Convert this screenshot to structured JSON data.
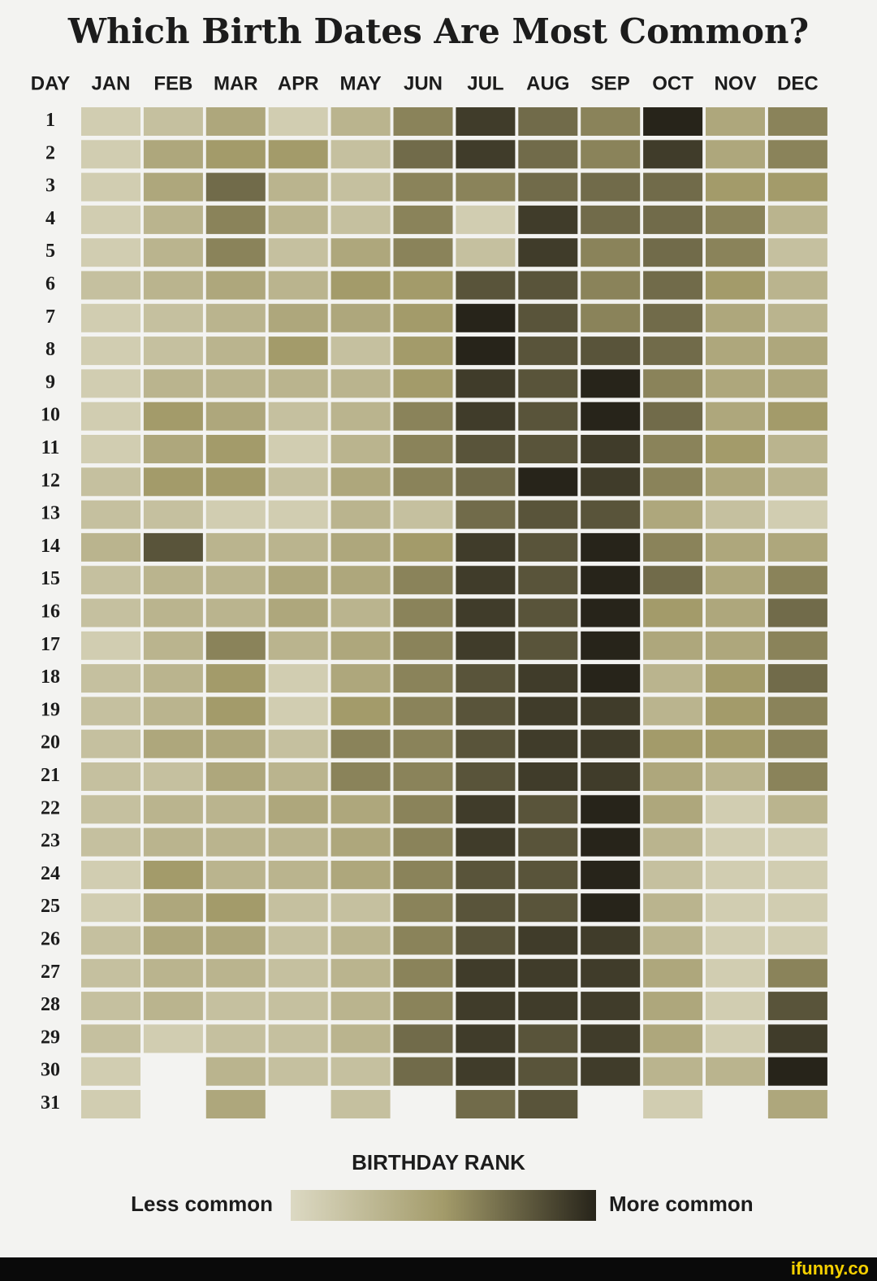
{
  "chart_data": {
    "type": "heatmap",
    "title": "Which Birth Dates Are Most Common?",
    "row_header": "DAY",
    "months": [
      "JAN",
      "FEB",
      "MAR",
      "APR",
      "MAY",
      "JUN",
      "JUL",
      "AUG",
      "SEP",
      "OCT",
      "NOV",
      "DEC"
    ],
    "days": [
      "1",
      "2",
      "3",
      "4",
      "5",
      "6",
      "7",
      "8",
      "9",
      "10",
      "11",
      "12",
      "13",
      "14",
      "15",
      "16",
      "17",
      "18",
      "19",
      "20",
      "21",
      "22",
      "23",
      "24",
      "25",
      "26",
      "27",
      "28",
      "29",
      "30",
      "31"
    ],
    "vlim": [
      0,
      10
    ],
    "colors": [
      "#dcd9c3",
      "#a39b6a",
      "#27241a"
    ],
    "values": [
      [
        1,
        2,
        4,
        1,
        3,
        6,
        9,
        7,
        6,
        10,
        4,
        6
      ],
      [
        1,
        4,
        5,
        5,
        2,
        7,
        9,
        7,
        6,
        9,
        4,
        6
      ],
      [
        1,
        4,
        7,
        3,
        2,
        6,
        6,
        7,
        7,
        7,
        5,
        5
      ],
      [
        1,
        3,
        6,
        3,
        2,
        6,
        1,
        9,
        7,
        7,
        6,
        3
      ],
      [
        1,
        3,
        6,
        2,
        4,
        6,
        2,
        9,
        6,
        7,
        6,
        2
      ],
      [
        2,
        3,
        4,
        3,
        5,
        5,
        8,
        8,
        6,
        7,
        5,
        3
      ],
      [
        1,
        2,
        3,
        4,
        4,
        5,
        10,
        8,
        6,
        7,
        4,
        3
      ],
      [
        1,
        2,
        3,
        5,
        2,
        5,
        10,
        8,
        8,
        7,
        4,
        4
      ],
      [
        1,
        3,
        3,
        3,
        3,
        5,
        9,
        8,
        10,
        6,
        4,
        4
      ],
      [
        1,
        5,
        4,
        2,
        3,
        6,
        9,
        8,
        10,
        7,
        4,
        5
      ],
      [
        1,
        4,
        5,
        1,
        3,
        6,
        8,
        8,
        9,
        6,
        5,
        3
      ],
      [
        2,
        5,
        5,
        2,
        4,
        6,
        7,
        10,
        9,
        6,
        4,
        3
      ],
      [
        2,
        2,
        1,
        1,
        3,
        2,
        7,
        8,
        8,
        4,
        2,
        1
      ],
      [
        3,
        8,
        3,
        3,
        4,
        5,
        9,
        8,
        10,
        6,
        4,
        4
      ],
      [
        2,
        3,
        3,
        4,
        4,
        6,
        9,
        8,
        10,
        7,
        4,
        6
      ],
      [
        2,
        3,
        3,
        4,
        3,
        6,
        9,
        8,
        10,
        5,
        4,
        7
      ],
      [
        1,
        3,
        6,
        3,
        4,
        6,
        9,
        8,
        10,
        4,
        4,
        6
      ],
      [
        2,
        3,
        5,
        1,
        4,
        6,
        8,
        9,
        10,
        3,
        5,
        7
      ],
      [
        2,
        3,
        5,
        1,
        5,
        6,
        8,
        9,
        9,
        3,
        5,
        6
      ],
      [
        2,
        4,
        4,
        2,
        6,
        6,
        8,
        9,
        9,
        5,
        5,
        6
      ],
      [
        2,
        2,
        4,
        3,
        6,
        6,
        8,
        9,
        9,
        4,
        3,
        6
      ],
      [
        2,
        3,
        3,
        4,
        4,
        6,
        9,
        8,
        10,
        4,
        1,
        3
      ],
      [
        2,
        3,
        3,
        3,
        4,
        6,
        9,
        8,
        10,
        3,
        1,
        1
      ],
      [
        1,
        5,
        3,
        3,
        4,
        6,
        8,
        8,
        10,
        2,
        1,
        1
      ],
      [
        1,
        4,
        5,
        2,
        2,
        6,
        8,
        8,
        10,
        3,
        1,
        1
      ],
      [
        2,
        4,
        4,
        2,
        3,
        6,
        8,
        9,
        9,
        3,
        1,
        1
      ],
      [
        2,
        3,
        3,
        2,
        3,
        6,
        9,
        9,
        9,
        4,
        1,
        6
      ],
      [
        2,
        3,
        2,
        2,
        3,
        6,
        9,
        9,
        9,
        4,
        1,
        8
      ],
      [
        2,
        1,
        2,
        2,
        3,
        7,
        9,
        8,
        9,
        4,
        1,
        9
      ],
      [
        1,
        null,
        3,
        2,
        2,
        7,
        9,
        8,
        9,
        3,
        3,
        10
      ],
      [
        1,
        null,
        4,
        null,
        2,
        null,
        7,
        8,
        null,
        1,
        null,
        4
      ]
    ],
    "legend": {
      "title": "BIRTHDAY RANK",
      "low_label": "Less common",
      "high_label": "More common"
    }
  },
  "footer": {
    "watermark": "ifunny.co"
  }
}
